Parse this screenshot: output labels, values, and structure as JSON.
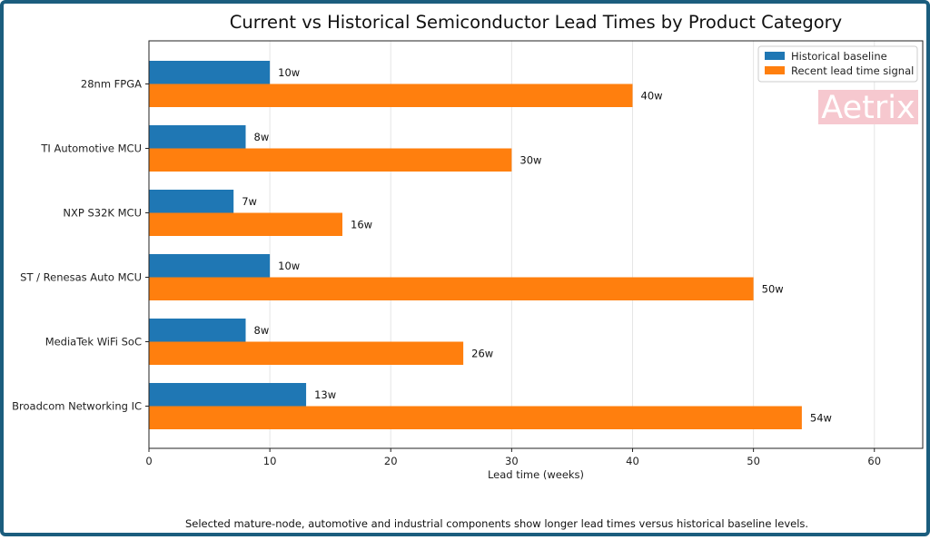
{
  "colors": {
    "historical": "#1f77b4",
    "recent": "#ff7f0e",
    "watermark_bg": "#f6c8cf",
    "frame": "#1b5d7e"
  },
  "watermark": "Aetrix",
  "footnote": "Selected mature-node, automotive and industrial components show longer lead times versus historical baseline levels.",
  "chart_data": {
    "type": "bar",
    "orientation": "horizontal",
    "title": "Current vs Historical Semiconductor Lead Times by Product Category",
    "xlabel": "Lead time (weeks)",
    "ylabel": "",
    "xlim": [
      0,
      64
    ],
    "xticks": [
      0,
      10,
      20,
      30,
      40,
      50,
      60
    ],
    "grid": "vertical",
    "legend_position": "top-right",
    "categories": [
      "28nm FPGA",
      "TI Automotive MCU",
      "NXP S32K MCU",
      "ST / Renesas Auto MCU",
      "MediaTek WiFi SoC",
      "Broadcom Networking IC"
    ],
    "series": [
      {
        "name": "Historical baseline",
        "color": "#1f77b4",
        "values": [
          10,
          8,
          7,
          10,
          8,
          13
        ],
        "labels": [
          "10w",
          "8w",
          "7w",
          "10w",
          "8w",
          "13w"
        ]
      },
      {
        "name": "Recent lead time signal",
        "color": "#ff7f0e",
        "values": [
          40,
          30,
          16,
          50,
          26,
          54
        ],
        "labels": [
          "40w",
          "30w",
          "16w",
          "50w",
          "26w",
          "54w"
        ]
      }
    ]
  }
}
